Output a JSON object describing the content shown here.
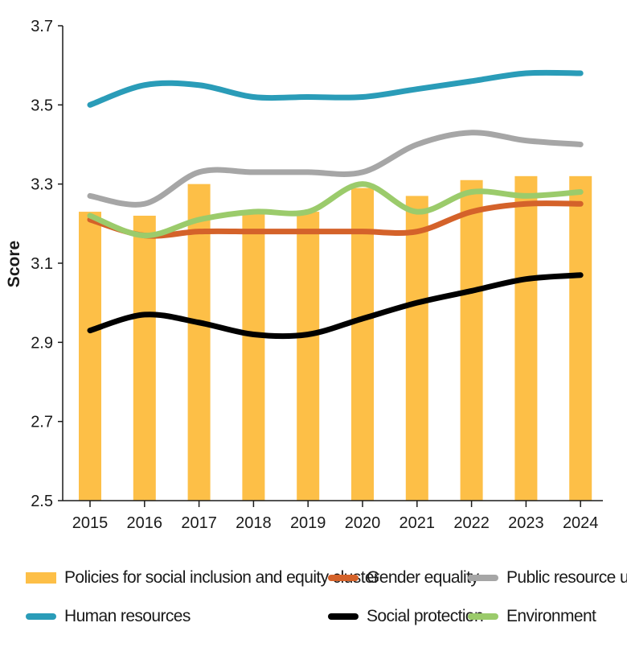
{
  "chart_data": {
    "type": "bar",
    "title": "",
    "xlabel": "",
    "ylabel": "Score",
    "ylim": [
      2.5,
      3.7
    ],
    "yticks": [
      "2.5",
      "2.7",
      "2.9",
      "3.1",
      "3.3",
      "3.5",
      "3.7"
    ],
    "grid": false,
    "categories": [
      "2015",
      "2016",
      "2017",
      "2018",
      "2019",
      "2020",
      "2021",
      "2022",
      "2023",
      "2024"
    ],
    "bar_series": {
      "name": "Policies for social inclusion and equity cluster",
      "color": "#FDBF47",
      "values": [
        3.23,
        3.22,
        3.3,
        3.23,
        3.23,
        3.29,
        3.27,
        3.31,
        3.32,
        3.32
      ]
    },
    "line_series": [
      {
        "name": "Human resources",
        "color": "#2A9CB8",
        "values": [
          3.5,
          3.55,
          3.55,
          3.52,
          3.52,
          3.52,
          3.54,
          3.56,
          3.58,
          3.58
        ]
      },
      {
        "name": "Gender equality",
        "color": "#D4622A",
        "values": [
          3.21,
          3.17,
          3.18,
          3.18,
          3.18,
          3.18,
          3.18,
          3.23,
          3.25,
          3.25
        ]
      },
      {
        "name": "Public resource use",
        "color": "#A6A6A6",
        "values": [
          3.27,
          3.25,
          3.33,
          3.33,
          3.33,
          3.33,
          3.4,
          3.43,
          3.41,
          3.4
        ]
      },
      {
        "name": "Social protection",
        "color": "#000000",
        "values": [
          2.93,
          2.97,
          2.95,
          2.92,
          2.92,
          2.96,
          3.0,
          3.03,
          3.06,
          3.07
        ]
      },
      {
        "name": "Environment",
        "color": "#9BCB6B",
        "values": [
          3.22,
          3.17,
          3.21,
          3.23,
          3.23,
          3.3,
          3.23,
          3.28,
          3.27,
          3.28
        ]
      }
    ],
    "legend": {
      "placement": "bottom",
      "entries": [
        {
          "label": "Policies for social inclusion and equity cluster",
          "kind": "bar",
          "color": "#FDBF47"
        },
        {
          "label": "Gender equality",
          "kind": "line",
          "color": "#D4622A"
        },
        {
          "label": "Public resource use",
          "kind": "line",
          "color": "#A6A6A6"
        },
        {
          "label": "Human resources",
          "kind": "line",
          "color": "#2A9CB8"
        },
        {
          "label": "Social protection",
          "kind": "line",
          "color": "#000000"
        },
        {
          "label": "Environment",
          "kind": "line",
          "color": "#9BCB6B"
        }
      ]
    }
  }
}
